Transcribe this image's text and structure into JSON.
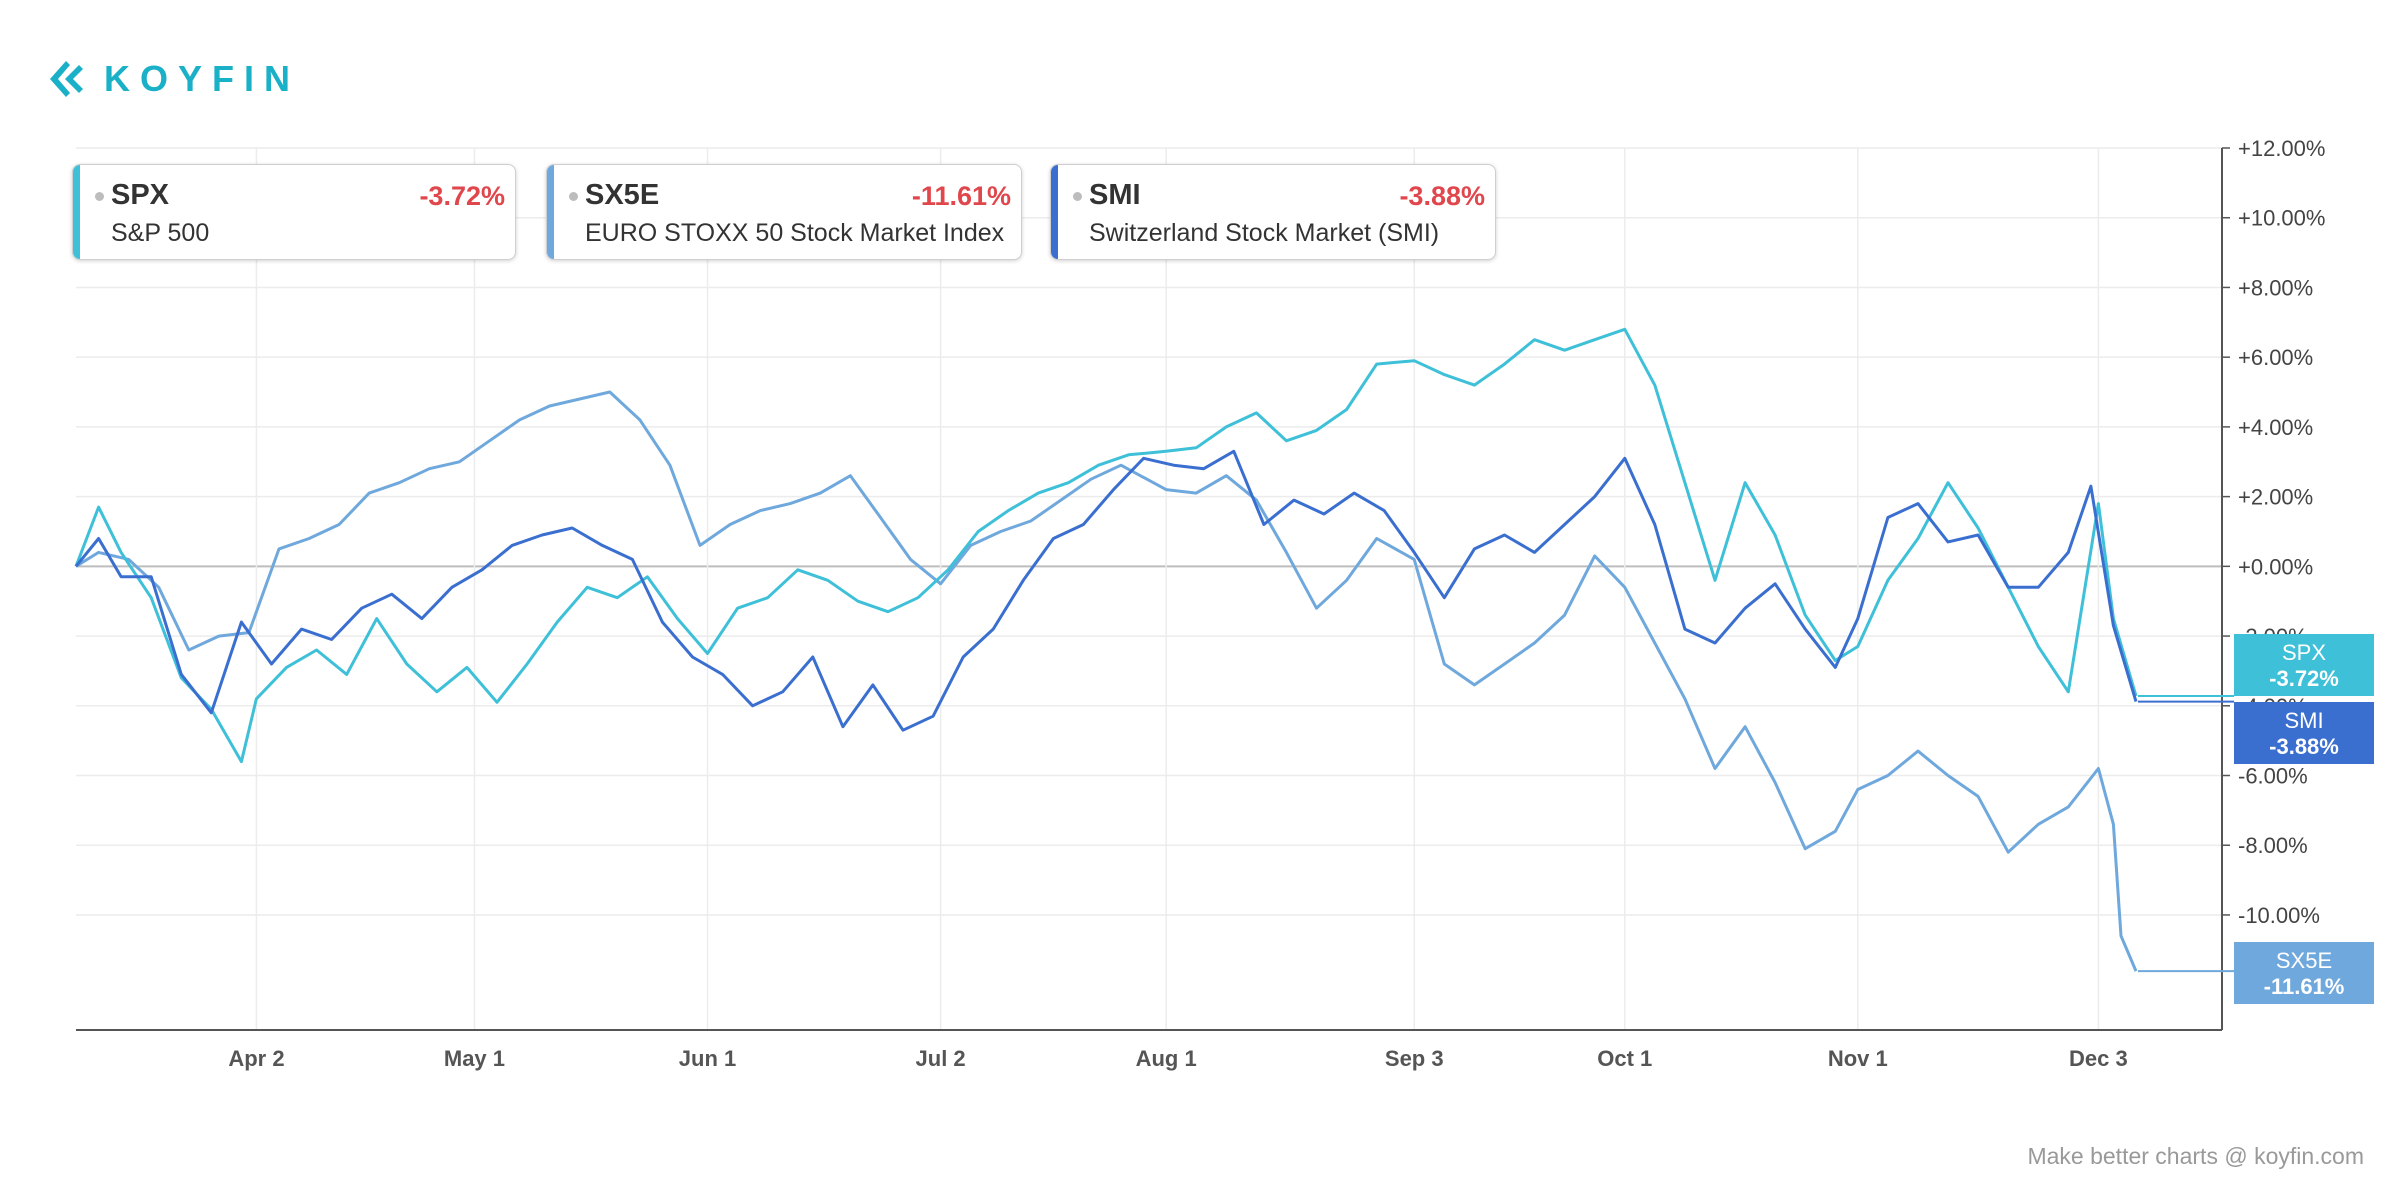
{
  "brand": {
    "name": "KOYFIN",
    "accent": "#1ab0c8"
  },
  "legend": [
    {
      "ticker": "SPX",
      "name": "S&P 500",
      "change": "-3.72%",
      "color": "#3ec0d8"
    },
    {
      "ticker": "SX5E",
      "name": "EURO STOXX 50 Stock Market Index",
      "change": "-11.61%",
      "color": "#6fa8dc"
    },
    {
      "ticker": "SMI",
      "name": "Switzerland Stock Market (SMI)",
      "change": "-3.88%",
      "color": "#3a6fd0"
    }
  ],
  "footer": "Make better charts @ koyfin.com",
  "chart_data": {
    "type": "line",
    "x_ticks": [
      "Apr 2",
      "May 1",
      "Jun 1",
      "Jul 2",
      "Aug 1",
      "Sep 3",
      "Oct 1",
      "Nov 1",
      "Dec 3"
    ],
    "y_ticks": [
      "+12.00%",
      "+10.00%",
      "+8.00%",
      "+6.00%",
      "+4.00%",
      "+2.00%",
      "+0.00%",
      "-2.00%",
      "-4.00%",
      "-6.00%",
      "-8.00%",
      "-10.00%"
    ],
    "ylim": [
      -13.3,
      12
    ],
    "grid": true,
    "series": [
      {
        "name": "SPX",
        "color": "#3ec0d8",
        "last_label": "-3.72%",
        "points": [
          [
            "Mar 9",
            0
          ],
          [
            "Mar 12",
            1.7
          ],
          [
            "Mar 15",
            0.4
          ],
          [
            "Mar 19",
            -0.9
          ],
          [
            "Mar 23",
            -3.2
          ],
          [
            "Mar 27",
            -4.1
          ],
          [
            "Mar 31",
            -5.6
          ],
          [
            "Apr 2",
            -3.8
          ],
          [
            "Apr 6",
            -2.9
          ],
          [
            "Apr 10",
            -2.4
          ],
          [
            "Apr 14",
            -3.1
          ],
          [
            "Apr 18",
            -1.5
          ],
          [
            "Apr 22",
            -2.8
          ],
          [
            "Apr 26",
            -3.6
          ],
          [
            "Apr 30",
            -2.9
          ],
          [
            "May 4",
            -3.9
          ],
          [
            "May 8",
            -2.8
          ],
          [
            "May 12",
            -1.6
          ],
          [
            "May 16",
            -0.6
          ],
          [
            "May 20",
            -0.9
          ],
          [
            "May 24",
            -0.3
          ],
          [
            "May 28",
            -1.5
          ],
          [
            "Jun 1",
            -2.5
          ],
          [
            "Jun 5",
            -1.2
          ],
          [
            "Jun 9",
            -0.9
          ],
          [
            "Jun 13",
            -0.1
          ],
          [
            "Jun 17",
            -0.4
          ],
          [
            "Jun 21",
            -1.0
          ],
          [
            "Jun 25",
            -1.3
          ],
          [
            "Jun 29",
            -0.9
          ],
          [
            "Jul 3",
            -0.1
          ],
          [
            "Jul 7",
            1.0
          ],
          [
            "Jul 11",
            1.6
          ],
          [
            "Jul 15",
            2.1
          ],
          [
            "Jul 19",
            2.4
          ],
          [
            "Jul 23",
            2.9
          ],
          [
            "Jul 27",
            3.2
          ],
          [
            "Aug 1",
            3.3
          ],
          [
            "Aug 5",
            3.4
          ],
          [
            "Aug 9",
            4.0
          ],
          [
            "Aug 13",
            4.4
          ],
          [
            "Aug 17",
            3.6
          ],
          [
            "Aug 21",
            3.9
          ],
          [
            "Aug 25",
            4.5
          ],
          [
            "Aug 29",
            5.8
          ],
          [
            "Sep 3",
            5.9
          ],
          [
            "Sep 7",
            5.5
          ],
          [
            "Sep 11",
            5.2
          ],
          [
            "Sep 15",
            5.8
          ],
          [
            "Sep 19",
            6.5
          ],
          [
            "Sep 23",
            6.2
          ],
          [
            "Sep 27",
            6.5
          ],
          [
            "Oct 1",
            6.8
          ],
          [
            "Oct 5",
            5.2
          ],
          [
            "Oct 9",
            2.4
          ],
          [
            "Oct 13",
            -0.4
          ],
          [
            "Oct 17",
            2.4
          ],
          [
            "Oct 21",
            0.9
          ],
          [
            "Oct 25",
            -1.4
          ],
          [
            "Oct 29",
            -2.7
          ],
          [
            "Nov 1",
            -2.3
          ],
          [
            "Nov 5",
            -0.4
          ],
          [
            "Nov 9",
            0.8
          ],
          [
            "Nov 13",
            2.4
          ],
          [
            "Nov 17",
            1.1
          ],
          [
            "Nov 21",
            -0.6
          ],
          [
            "Nov 25",
            -2.3
          ],
          [
            "Nov 29",
            -3.6
          ],
          [
            "Dec 3",
            1.8
          ],
          [
            "Dec 5",
            -1.5
          ],
          [
            "Dec 8",
            -3.72
          ]
        ]
      },
      {
        "name": "SX5E",
        "color": "#6fa8dc",
        "last_label": "-11.61%",
        "points": [
          [
            "Mar 9",
            0
          ],
          [
            "Mar 12",
            0.4
          ],
          [
            "Mar 16",
            0.2
          ],
          [
            "Mar 20",
            -0.6
          ],
          [
            "Mar 24",
            -2.4
          ],
          [
            "Mar 28",
            -2.0
          ],
          [
            "Apr 1",
            -1.9
          ],
          [
            "Apr 5",
            0.5
          ],
          [
            "Apr 9",
            0.8
          ],
          [
            "Apr 13",
            1.2
          ],
          [
            "Apr 17",
            2.1
          ],
          [
            "Apr 21",
            2.4
          ],
          [
            "Apr 25",
            2.8
          ],
          [
            "Apr 29",
            3.0
          ],
          [
            "May 3",
            3.6
          ],
          [
            "May 7",
            4.2
          ],
          [
            "May 11",
            4.6
          ],
          [
            "May 15",
            4.8
          ],
          [
            "May 19",
            5.0
          ],
          [
            "May 23",
            4.2
          ],
          [
            "May 27",
            2.9
          ],
          [
            "May 31",
            0.6
          ],
          [
            "Jun 4",
            1.2
          ],
          [
            "Jun 8",
            1.6
          ],
          [
            "Jun 12",
            1.8
          ],
          [
            "Jun 16",
            2.1
          ],
          [
            "Jun 20",
            2.6
          ],
          [
            "Jun 24",
            1.4
          ],
          [
            "Jun 28",
            0.2
          ],
          [
            "Jul 2",
            -0.5
          ],
          [
            "Jul 6",
            0.6
          ],
          [
            "Jul 10",
            1.0
          ],
          [
            "Jul 14",
            1.3
          ],
          [
            "Jul 18",
            1.9
          ],
          [
            "Jul 22",
            2.5
          ],
          [
            "Jul 26",
            2.9
          ],
          [
            "Aug 1",
            2.2
          ],
          [
            "Aug 5",
            2.1
          ],
          [
            "Aug 9",
            2.6
          ],
          [
            "Aug 13",
            1.9
          ],
          [
            "Aug 17",
            0.4
          ],
          [
            "Aug 21",
            -1.2
          ],
          [
            "Aug 25",
            -0.4
          ],
          [
            "Aug 29",
            0.8
          ],
          [
            "Sep 3",
            0.2
          ],
          [
            "Sep 7",
            -2.8
          ],
          [
            "Sep 11",
            -3.4
          ],
          [
            "Sep 15",
            -2.8
          ],
          [
            "Sep 19",
            -2.2
          ],
          [
            "Sep 23",
            -1.4
          ],
          [
            "Sep 27",
            0.3
          ],
          [
            "Oct 1",
            -0.6
          ],
          [
            "Oct 5",
            -2.2
          ],
          [
            "Oct 9",
            -3.8
          ],
          [
            "Oct 13",
            -5.8
          ],
          [
            "Oct 17",
            -4.6
          ],
          [
            "Oct 21",
            -6.2
          ],
          [
            "Oct 25",
            -8.1
          ],
          [
            "Oct 29",
            -7.6
          ],
          [
            "Nov 1",
            -6.4
          ],
          [
            "Nov 5",
            -6.0
          ],
          [
            "Nov 9",
            -5.3
          ],
          [
            "Nov 13",
            -6.0
          ],
          [
            "Nov 17",
            -6.6
          ],
          [
            "Nov 21",
            -8.2
          ],
          [
            "Nov 25",
            -7.4
          ],
          [
            "Nov 29",
            -6.9
          ],
          [
            "Dec 3",
            -5.8
          ],
          [
            "Dec 5",
            -7.4
          ],
          [
            "Dec 6",
            -10.6
          ],
          [
            "Dec 8",
            -11.61
          ]
        ]
      },
      {
        "name": "SMI",
        "color": "#3a6fd0",
        "last_label": "-3.88%",
        "points": [
          [
            "Mar 9",
            0
          ],
          [
            "Mar 12",
            0.8
          ],
          [
            "Mar 15",
            -0.3
          ],
          [
            "Mar 19",
            -0.3
          ],
          [
            "Mar 23",
            -3.1
          ],
          [
            "Mar 27",
            -4.2
          ],
          [
            "Mar 31",
            -1.6
          ],
          [
            "Apr 4",
            -2.8
          ],
          [
            "Apr 8",
            -1.8
          ],
          [
            "Apr 12",
            -2.1
          ],
          [
            "Apr 16",
            -1.2
          ],
          [
            "Apr 20",
            -0.8
          ],
          [
            "Apr 24",
            -1.5
          ],
          [
            "Apr 28",
            -0.6
          ],
          [
            "May 2",
            -0.1
          ],
          [
            "May 6",
            0.6
          ],
          [
            "May 10",
            0.9
          ],
          [
            "May 14",
            1.1
          ],
          [
            "May 18",
            0.6
          ],
          [
            "May 22",
            0.2
          ],
          [
            "May 26",
            -1.6
          ],
          [
            "May 30",
            -2.6
          ],
          [
            "Jun 3",
            -3.1
          ],
          [
            "Jun 7",
            -4.0
          ],
          [
            "Jun 11",
            -3.6
          ],
          [
            "Jun 15",
            -2.6
          ],
          [
            "Jun 19",
            -4.6
          ],
          [
            "Jun 23",
            -3.4
          ],
          [
            "Jun 27",
            -4.7
          ],
          [
            "Jul 1",
            -4.3
          ],
          [
            "Jul 5",
            -2.6
          ],
          [
            "Jul 9",
            -1.8
          ],
          [
            "Jul 13",
            -0.4
          ],
          [
            "Jul 17",
            0.8
          ],
          [
            "Jul 21",
            1.2
          ],
          [
            "Jul 25",
            2.2
          ],
          [
            "Jul 29",
            3.1
          ],
          [
            "Aug 2",
            2.9
          ],
          [
            "Aug 6",
            2.8
          ],
          [
            "Aug 10",
            3.3
          ],
          [
            "Aug 14",
            1.2
          ],
          [
            "Aug 18",
            1.9
          ],
          [
            "Aug 22",
            1.5
          ],
          [
            "Aug 26",
            2.1
          ],
          [
            "Aug 30",
            1.6
          ],
          [
            "Sep 3",
            0.4
          ],
          [
            "Sep 7",
            -0.9
          ],
          [
            "Sep 11",
            0.5
          ],
          [
            "Sep 15",
            0.9
          ],
          [
            "Sep 19",
            0.4
          ],
          [
            "Sep 23",
            1.2
          ],
          [
            "Sep 27",
            2.0
          ],
          [
            "Oct 1",
            3.1
          ],
          [
            "Oct 5",
            1.2
          ],
          [
            "Oct 9",
            -1.8
          ],
          [
            "Oct 13",
            -2.2
          ],
          [
            "Oct 17",
            -1.2
          ],
          [
            "Oct 21",
            -0.5
          ],
          [
            "Oct 25",
            -1.8
          ],
          [
            "Oct 29",
            -2.9
          ],
          [
            "Nov 1",
            -1.5
          ],
          [
            "Nov 5",
            1.4
          ],
          [
            "Nov 9",
            1.8
          ],
          [
            "Nov 13",
            0.7
          ],
          [
            "Nov 17",
            0.9
          ],
          [
            "Nov 21",
            -0.6
          ],
          [
            "Nov 25",
            -0.6
          ],
          [
            "Nov 29",
            0.4
          ],
          [
            "Dec 2",
            2.3
          ],
          [
            "Dec 5",
            -1.7
          ],
          [
            "Dec 8",
            -3.88
          ]
        ]
      }
    ]
  }
}
